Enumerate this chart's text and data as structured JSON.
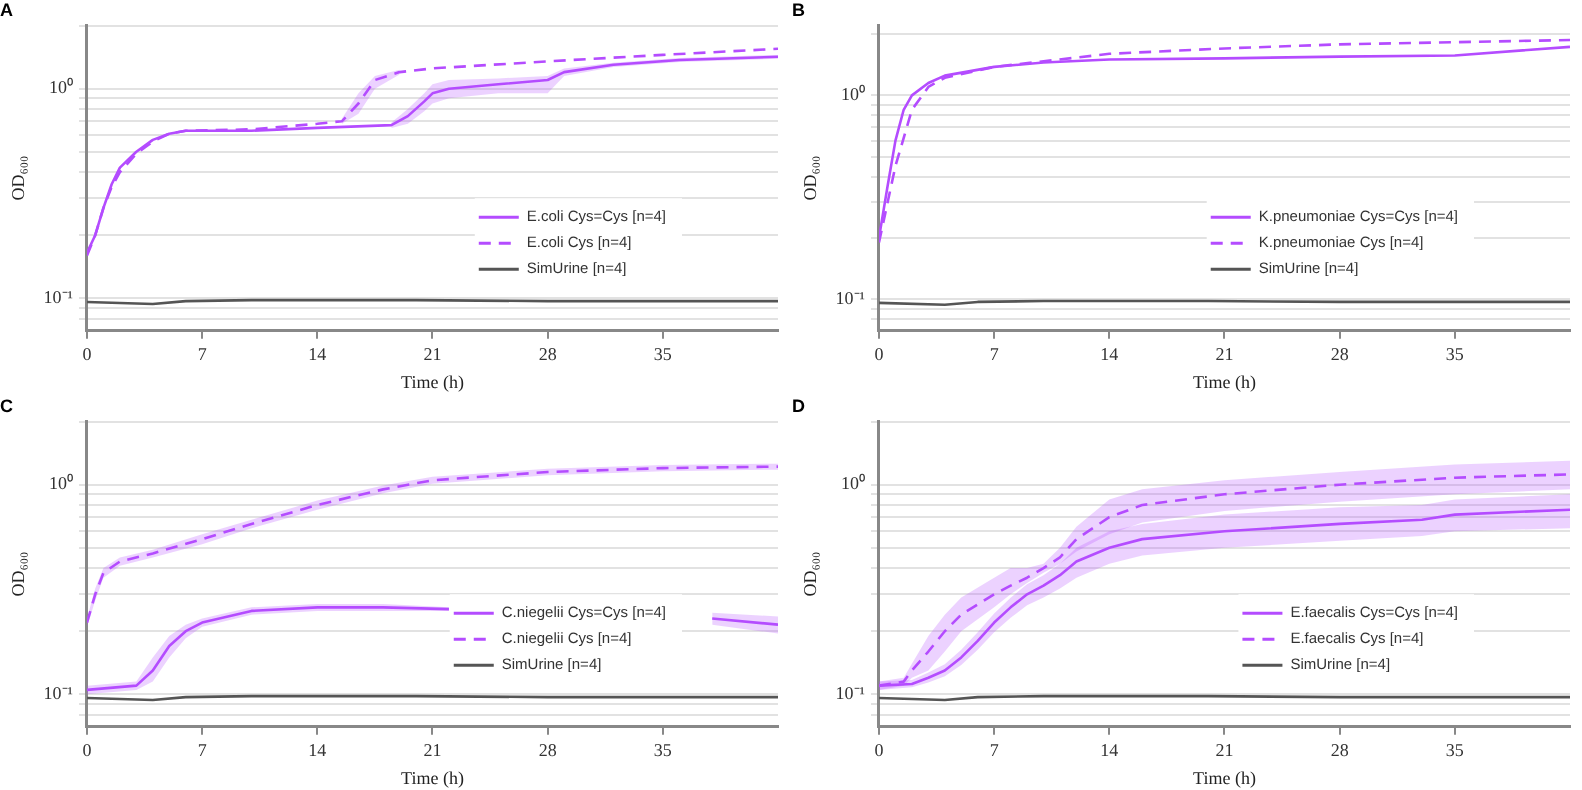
{
  "chart_data": [
    {
      "type": "line",
      "title": "A",
      "xlabel": "Time (h)",
      "ylabel": "OD₆₀₀",
      "xlim": [
        0,
        42
      ],
      "xticks": [
        0,
        7,
        14,
        21,
        28,
        35
      ],
      "ylim": [
        0.07,
        2
      ],
      "yticks": [
        {
          "value": 0.08,
          "label": null
        },
        {
          "value": 0.09,
          "label": null
        },
        {
          "value": 0.1,
          "label": "10⁻¹"
        },
        {
          "value": 0.2,
          "label": null
        },
        {
          "value": 0.3,
          "label": null
        },
        {
          "value": 0.4,
          "label": null
        },
        {
          "value": 0.5,
          "label": null
        },
        {
          "value": 0.6,
          "label": null
        },
        {
          "value": 0.7,
          "label": null
        },
        {
          "value": 0.8,
          "label": null
        },
        {
          "value": 0.9,
          "label": null
        },
        {
          "value": 1,
          "label": "10⁰"
        },
        {
          "value": 2,
          "label": null
        }
      ],
      "log": "y",
      "grid": "y",
      "legend": "right",
      "marker": "none",
      "series": [
        {
          "name": "E.coli Cys=Cys [n=4]",
          "color": "#b44cff",
          "line_style": "solid",
          "x": [
            0,
            0.5,
            1,
            1.5,
            2,
            3,
            4,
            5,
            6,
            10,
            14,
            18.5,
            19.5,
            20.5,
            21,
            22,
            25,
            28,
            29,
            32,
            36,
            42
          ],
          "values": [
            0.165,
            0.2,
            0.27,
            0.35,
            0.42,
            0.5,
            0.57,
            0.61,
            0.63,
            0.63,
            0.65,
            0.67,
            0.74,
            0.87,
            0.95,
            1.0,
            1.05,
            1.1,
            1.2,
            1.3,
            1.37,
            1.42
          ],
          "lower": [
            null,
            null,
            null,
            null,
            null,
            null,
            null,
            null,
            null,
            null,
            null,
            0.65,
            0.68,
            0.78,
            0.85,
            0.9,
            0.95,
            0.95,
            1.15,
            1.27,
            1.34,
            1.39
          ],
          "upper": [
            null,
            null,
            null,
            null,
            null,
            null,
            null,
            null,
            null,
            null,
            null,
            0.69,
            0.8,
            0.95,
            1.05,
            1.1,
            1.12,
            1.15,
            1.25,
            1.33,
            1.4,
            1.45
          ]
        },
        {
          "name": "E.coli Cys [n=4]",
          "color": "#b44cff",
          "line_style": "dashed",
          "x": [
            0,
            0.5,
            1,
            1.5,
            2,
            3,
            4,
            5,
            6,
            10,
            14,
            15.5,
            16.5,
            17.5,
            19,
            21,
            28,
            35,
            42
          ],
          "values": [
            0.16,
            0.2,
            0.27,
            0.34,
            0.4,
            0.49,
            0.56,
            0.61,
            0.63,
            0.64,
            0.68,
            0.7,
            0.85,
            1.1,
            1.2,
            1.25,
            1.35,
            1.45,
            1.55
          ],
          "lower": [
            null,
            null,
            null,
            null,
            null,
            null,
            null,
            null,
            null,
            null,
            null,
            0.68,
            0.76,
            1.0,
            1.17,
            null,
            null,
            null,
            null
          ],
          "upper": [
            null,
            null,
            null,
            null,
            null,
            null,
            null,
            null,
            null,
            null,
            null,
            0.72,
            0.95,
            1.15,
            1.23,
            null,
            null,
            null,
            null
          ]
        },
        {
          "name": "SimUrine [n=4]",
          "color": "#555555",
          "line_style": "solid",
          "x": [
            0,
            4,
            6,
            10,
            20,
            28,
            42
          ],
          "values": [
            0.096,
            0.094,
            0.097,
            0.098,
            0.098,
            0.097,
            0.097
          ]
        }
      ]
    },
    {
      "type": "line",
      "title": "B",
      "xlabel": "Time (h)",
      "ylabel": "OD₆₀₀",
      "xlim": [
        0,
        42
      ],
      "xticks": [
        0,
        7,
        14,
        21,
        28,
        35
      ],
      "ylim": [
        0.07,
        2.2
      ],
      "yticks": [
        {
          "value": 0.08,
          "label": null
        },
        {
          "value": 0.09,
          "label": null
        },
        {
          "value": 0.1,
          "label": "10⁻¹"
        },
        {
          "value": 0.2,
          "label": null
        },
        {
          "value": 0.3,
          "label": null
        },
        {
          "value": 0.4,
          "label": null
        },
        {
          "value": 0.5,
          "label": null
        },
        {
          "value": 0.6,
          "label": null
        },
        {
          "value": 0.7,
          "label": null
        },
        {
          "value": 0.8,
          "label": null
        },
        {
          "value": 0.9,
          "label": null
        },
        {
          "value": 1,
          "label": "10⁰"
        },
        {
          "value": 2,
          "label": null
        }
      ],
      "log": "y",
      "grid": "y",
      "legend": "right",
      "marker": "none",
      "series": [
        {
          "name": "K.pneumoniae Cys=Cys [n=4]",
          "color": "#b44cff",
          "line_style": "solid",
          "x": [
            0,
            0.5,
            1,
            1.5,
            2,
            3,
            4,
            7,
            10,
            14,
            21,
            28,
            35,
            42
          ],
          "values": [
            0.2,
            0.35,
            0.6,
            0.85,
            1.0,
            1.15,
            1.25,
            1.38,
            1.45,
            1.5,
            1.52,
            1.55,
            1.57,
            1.73
          ]
        },
        {
          "name": "K.pneumoniae Cys [n=4]",
          "color": "#b44cff",
          "line_style": "dashed",
          "x": [
            0,
            1,
            2,
            3,
            4,
            7,
            14,
            21,
            28,
            42
          ],
          "values": [
            0.19,
            0.45,
            0.85,
            1.1,
            1.22,
            1.38,
            1.6,
            1.7,
            1.78,
            1.87
          ]
        },
        {
          "name": "SimUrine [n=4]",
          "color": "#555555",
          "line_style": "solid",
          "x": [
            0,
            4,
            6,
            10,
            20,
            28,
            42
          ],
          "values": [
            0.096,
            0.094,
            0.097,
            0.098,
            0.098,
            0.097,
            0.097
          ]
        }
      ]
    },
    {
      "type": "line",
      "title": "C",
      "xlabel": "Time (h)",
      "ylabel": "OD₆₀₀",
      "xlim": [
        0,
        42
      ],
      "xticks": [
        0,
        7,
        14,
        21,
        28,
        35
      ],
      "ylim": [
        0.07,
        2
      ],
      "yticks": [
        {
          "value": 0.08,
          "label": null
        },
        {
          "value": 0.09,
          "label": null
        },
        {
          "value": 0.1,
          "label": "10⁻¹"
        },
        {
          "value": 0.2,
          "label": null
        },
        {
          "value": 0.3,
          "label": null
        },
        {
          "value": 0.4,
          "label": null
        },
        {
          "value": 0.5,
          "label": null
        },
        {
          "value": 0.6,
          "label": null
        },
        {
          "value": 0.7,
          "label": null
        },
        {
          "value": 0.8,
          "label": null
        },
        {
          "value": 0.9,
          "label": null
        },
        {
          "value": 1,
          "label": "10⁰"
        },
        {
          "value": 2,
          "label": null
        }
      ],
      "log": "y",
      "grid": "y",
      "legend": "right",
      "marker": "none",
      "series": [
        {
          "name": "C.niegelii Cys=Cys [n=4]",
          "color": "#b44cff",
          "line_style": "solid",
          "x": [
            0,
            3,
            4,
            5,
            6,
            7,
            10,
            14,
            18,
            22,
            30,
            38,
            42
          ],
          "values": [
            0.105,
            0.11,
            0.13,
            0.17,
            0.2,
            0.22,
            0.25,
            0.26,
            0.26,
            0.255,
            null,
            0.23,
            0.215
          ],
          "lower": [
            0.1,
            0.105,
            0.115,
            0.15,
            0.185,
            0.21,
            0.24,
            0.25,
            0.25,
            0.25,
            null,
            0.215,
            0.195
          ],
          "upper": [
            0.11,
            0.115,
            0.15,
            0.19,
            0.215,
            0.23,
            0.26,
            0.27,
            0.27,
            0.26,
            null,
            0.245,
            0.235
          ]
        },
        {
          "name": "C.niegelii Cys [n=4]",
          "color": "#b44cff",
          "line_style": "dashed",
          "x": [
            0,
            0.5,
            1,
            2,
            4,
            7,
            10,
            14,
            18,
            21,
            28,
            35,
            42
          ],
          "values": [
            0.22,
            0.3,
            0.38,
            0.43,
            0.47,
            0.55,
            0.65,
            0.8,
            0.95,
            1.05,
            1.15,
            1.2,
            1.22
          ],
          "lower": [
            0.21,
            0.28,
            0.36,
            0.41,
            0.45,
            0.52,
            0.62,
            0.76,
            0.91,
            1.01,
            1.11,
            1.16,
            1.18
          ],
          "upper": [
            0.23,
            0.32,
            0.4,
            0.45,
            0.49,
            0.58,
            0.68,
            0.84,
            0.99,
            1.09,
            1.19,
            1.24,
            1.26
          ]
        },
        {
          "name": "SimUrine [n=4]",
          "color": "#555555",
          "line_style": "solid",
          "x": [
            0,
            4,
            6,
            10,
            20,
            28,
            42
          ],
          "values": [
            0.096,
            0.094,
            0.097,
            0.098,
            0.098,
            0.097,
            0.097
          ]
        }
      ]
    },
    {
      "type": "line",
      "title": "D",
      "xlabel": "Time (h)",
      "ylabel": "OD₆₀₀",
      "xlim": [
        0,
        42
      ],
      "xticks": [
        0,
        7,
        14,
        21,
        28,
        35
      ],
      "ylim": [
        0.07,
        2
      ],
      "yticks": [
        {
          "value": 0.08,
          "label": null
        },
        {
          "value": 0.09,
          "label": null
        },
        {
          "value": 0.1,
          "label": "10⁻¹"
        },
        {
          "value": 0.2,
          "label": null
        },
        {
          "value": 0.3,
          "label": null
        },
        {
          "value": 0.4,
          "label": null
        },
        {
          "value": 0.5,
          "label": null
        },
        {
          "value": 0.6,
          "label": null
        },
        {
          "value": 0.7,
          "label": null
        },
        {
          "value": 0.8,
          "label": null
        },
        {
          "value": 0.9,
          "label": null
        },
        {
          "value": 1,
          "label": "10⁰"
        },
        {
          "value": 2,
          "label": null
        }
      ],
      "log": "y",
      "grid": "y",
      "legend": "right",
      "marker": "none",
      "series": [
        {
          "name": "E.faecalis Cys=Cys [n=4]",
          "color": "#b44cff",
          "line_style": "solid",
          "x": [
            0,
            2,
            3,
            4,
            5,
            6,
            7,
            8,
            9,
            10,
            11,
            12,
            14,
            16,
            21,
            28,
            33,
            35,
            42
          ],
          "values": [
            0.11,
            0.112,
            0.12,
            0.13,
            0.15,
            0.18,
            0.22,
            0.26,
            0.3,
            0.33,
            0.37,
            0.43,
            0.5,
            0.55,
            0.6,
            0.65,
            0.68,
            0.72,
            0.76
          ],
          "lower": [
            0.105,
            0.108,
            0.114,
            0.122,
            0.138,
            0.163,
            0.198,
            0.232,
            0.266,
            0.29,
            0.32,
            0.36,
            0.42,
            0.46,
            0.5,
            0.54,
            0.57,
            0.6,
            0.62
          ],
          "upper": [
            0.115,
            0.117,
            0.127,
            0.139,
            0.163,
            0.198,
            0.243,
            0.289,
            0.335,
            0.37,
            0.42,
            0.5,
            0.6,
            0.65,
            0.72,
            0.78,
            0.8,
            0.85,
            0.9
          ]
        },
        {
          "name": "E.faecalis Cys [n=4]",
          "color": "#b44cff",
          "line_style": "dashed",
          "x": [
            0,
            1.5,
            2,
            3,
            4,
            5,
            7,
            8,
            9,
            10,
            11,
            12,
            14,
            16,
            21,
            28,
            35,
            42
          ],
          "values": [
            0.11,
            0.115,
            0.13,
            0.16,
            0.2,
            0.24,
            0.3,
            0.33,
            0.36,
            0.4,
            0.45,
            0.55,
            0.7,
            0.8,
            0.9,
            1.0,
            1.08,
            1.12
          ],
          "lower": [
            0.105,
            0.11,
            0.12,
            0.13,
            0.16,
            0.2,
            0.26,
            0.3,
            0.34,
            0.38,
            0.42,
            0.48,
            0.58,
            0.66,
            0.75,
            0.83,
            0.9,
            0.95
          ],
          "upper": [
            0.115,
            0.12,
            0.14,
            0.19,
            0.24,
            0.29,
            0.36,
            0.4,
            0.4,
            0.42,
            0.5,
            0.63,
            0.85,
            0.95,
            1.05,
            1.15,
            1.25,
            1.3
          ]
        },
        {
          "name": "SimUrine [n=4]",
          "color": "#555555",
          "line_style": "solid",
          "x": [
            0,
            4,
            6,
            10,
            20,
            28,
            42
          ],
          "values": [
            0.096,
            0.094,
            0.097,
            0.098,
            0.098,
            0.097,
            0.097
          ]
        }
      ]
    }
  ]
}
